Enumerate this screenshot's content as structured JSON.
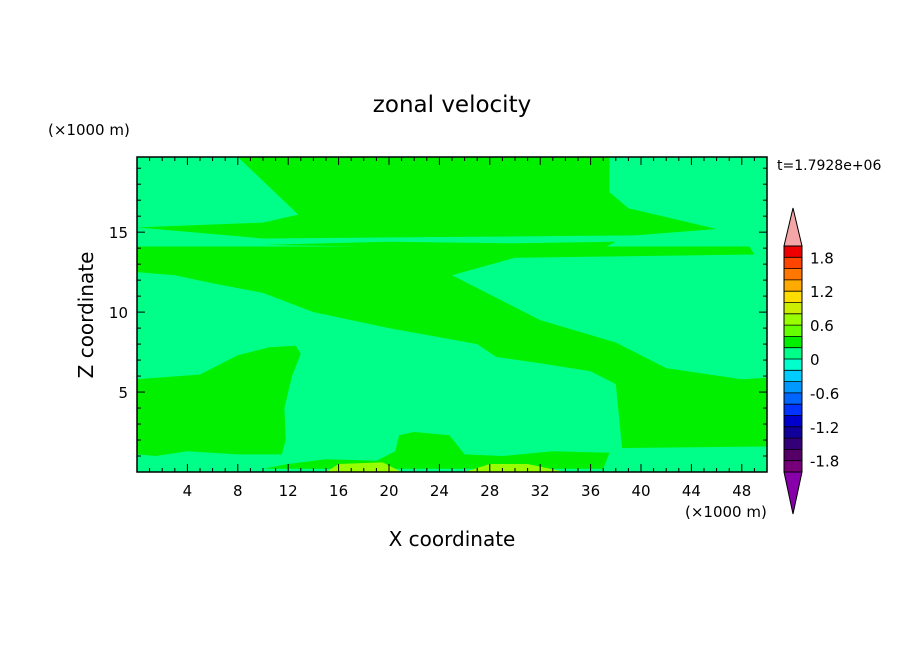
{
  "chart_data": {
    "type": "heatmap",
    "title": "zonal velocity",
    "xlabel": "X coordinate",
    "ylabel": "Z coordinate",
    "x_unit": "(×1000 m)",
    "y_unit": "(×1000 m)",
    "time_label": "t=1.7928e+06",
    "xlim": [
      0,
      50
    ],
    "ylim": [
      0,
      19.7
    ],
    "x_ticks": [
      4,
      8,
      12,
      16,
      20,
      24,
      28,
      32,
      36,
      40,
      44,
      48
    ],
    "y_ticks": [
      5,
      10,
      15
    ],
    "background_value": "-0.3 to 0",
    "regions": [
      {
        "name": "upper-band",
        "level_range": "0 to 0.3",
        "color": "#00f000",
        "points": [
          [
            8,
            19.7
          ],
          [
            37.5,
            19.7
          ],
          [
            37.5,
            17.5
          ],
          [
            39,
            16.5
          ],
          [
            46,
            15.2
          ],
          [
            39.5,
            14.8
          ],
          [
            10,
            14.6
          ],
          [
            0,
            15.3
          ],
          [
            10,
            15.6
          ],
          [
            12.8,
            16.1
          ],
          [
            8,
            19.7
          ]
        ]
      },
      {
        "name": "thin-streak",
        "level_range": "0 to 0.3",
        "color": "#00f000",
        "points": [
          [
            10,
            14.2
          ],
          [
            20,
            14.4
          ],
          [
            30,
            14.3
          ],
          [
            38,
            14.4
          ],
          [
            37,
            14.0
          ],
          [
            25,
            14.0
          ],
          [
            10,
            14.2
          ]
        ]
      },
      {
        "name": "diagonal-band",
        "level_range": "0 to 0.3",
        "color": "#00f000",
        "points": [
          [
            0,
            14.1
          ],
          [
            20,
            14.1
          ],
          [
            48.6,
            14.1
          ],
          [
            49,
            13.6
          ],
          [
            30,
            13.4
          ],
          [
            25,
            12.3
          ],
          [
            32,
            9.5
          ],
          [
            38,
            8.1
          ],
          [
            42,
            6.5
          ],
          [
            48,
            5.8
          ],
          [
            50,
            5.9
          ],
          [
            50,
            1.6
          ],
          [
            38.5,
            1.5
          ],
          [
            38,
            5.5
          ],
          [
            36,
            6.3
          ],
          [
            32,
            6.8
          ],
          [
            28.5,
            7.2
          ],
          [
            27,
            8
          ],
          [
            20,
            9
          ],
          [
            14,
            10
          ],
          [
            10,
            11.2
          ],
          [
            6,
            11.8
          ],
          [
            3,
            12.3
          ],
          [
            0,
            12.5
          ]
        ]
      },
      {
        "name": "lower-left-band",
        "level_range": "0 to 0.3",
        "color": "#00f000",
        "points": [
          [
            0,
            5.8
          ],
          [
            5,
            6.1
          ],
          [
            8,
            7.3
          ],
          [
            10.5,
            7.8
          ],
          [
            12.6,
            7.9
          ],
          [
            13,
            7.4
          ],
          [
            12.3,
            6
          ],
          [
            11.7,
            4
          ],
          [
            11.8,
            2
          ],
          [
            11.5,
            1.1
          ],
          [
            8,
            1.1
          ],
          [
            4,
            1.3
          ],
          [
            1.5,
            1.0
          ],
          [
            0,
            1.1
          ]
        ]
      },
      {
        "name": "bottom-strip",
        "level_range": "0 to 0.3",
        "color": "#00f000",
        "points": [
          [
            10,
            0.2
          ],
          [
            37,
            0.2
          ],
          [
            37.5,
            1.2
          ],
          [
            33,
            1.3
          ],
          [
            29,
            1.0
          ],
          [
            26,
            1.1
          ],
          [
            24.8,
            2.3
          ],
          [
            22,
            2.5
          ],
          [
            20.8,
            2.3
          ],
          [
            20.5,
            1.3
          ],
          [
            19,
            0.7
          ],
          [
            15,
            0.8
          ],
          [
            12,
            0.5
          ],
          [
            10,
            0.2
          ]
        ]
      },
      {
        "name": "yellow-patch-left",
        "level_range": "0.3 to 0.6",
        "color": "#99ff00",
        "points": [
          [
            15,
            0
          ],
          [
            21,
            0
          ],
          [
            19.5,
            0.6
          ],
          [
            16,
            0.5
          ],
          [
            15,
            0
          ]
        ]
      },
      {
        "name": "yellow-patch-right",
        "level_range": "0.3 to 0.6",
        "color": "#99ff00",
        "points": [
          [
            26,
            0
          ],
          [
            34,
            0
          ],
          [
            31,
            0.5
          ],
          [
            28,
            0.5
          ],
          [
            26,
            0
          ]
        ]
      }
    ],
    "colorbar": {
      "levels": [
        "1.8",
        "1.2",
        "0.6",
        "0",
        "-0.6",
        "-1.2",
        "-1.8"
      ],
      "colors_top_to_bottom": [
        "#ee0000",
        "#ff4400",
        "#ff7700",
        "#ffaa00",
        "#ffdd00",
        "#ccee00",
        "#99ff00",
        "#66ff00",
        "#00f000",
        "#00ff88",
        "#00ffcc",
        "#00ccff",
        "#0099ff",
        "#0066ff",
        "#0033ff",
        "#0000cc",
        "#110099",
        "#330077",
        "#550066",
        "#77007a"
      ],
      "over_color": "#f4a6a6",
      "under_color": "#8800aa",
      "background_color": "#00ff88"
    }
  }
}
